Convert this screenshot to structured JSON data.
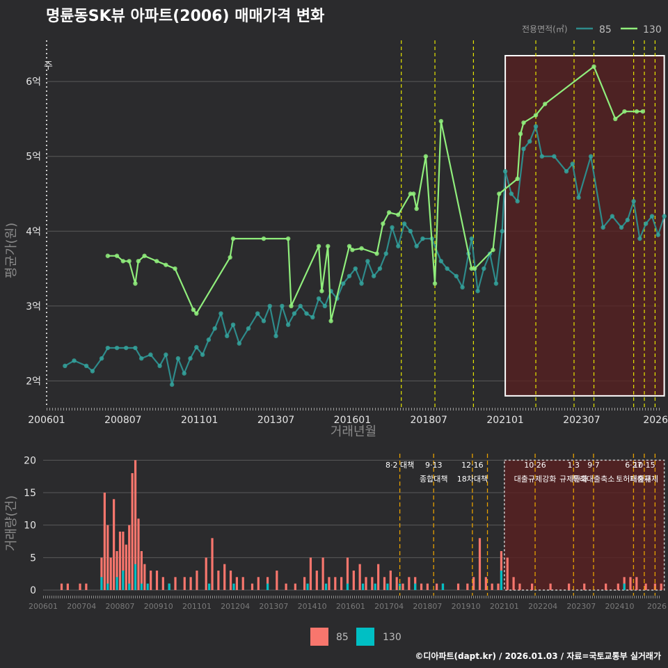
{
  "title": "명륜동SK뷰 아파트(2006) 매매가격 변화",
  "footer": "©디아파트(dapt.kr) / 2026.01.03 / 자료=국토교통부 실거래가",
  "colors": {
    "background": "#2b2b2d",
    "grid": "#5a5a5a",
    "s85_line": "#2e8b8b",
    "s85_point": "#34a39c",
    "s130": "#90ee7c",
    "bar85": "#f8766d",
    "bar130": "#00bfc4",
    "highlight_fill": "#5a2020",
    "policy_line_top": "#e6e600",
    "policy_line_bottom": "#e6a000"
  },
  "chart_data": [
    {
      "type": "line",
      "name": "price",
      "ylabel": "평균가(원)",
      "xlabel": "거래년월",
      "ylim": [
        1.65,
        6.55
      ],
      "yticks": [
        {
          "v": 2,
          "label": "2억"
        },
        {
          "v": 3,
          "label": "3억"
        },
        {
          "v": 4,
          "label": "4억"
        },
        {
          "v": 5,
          "label": "5억"
        },
        {
          "v": 6,
          "label": "6억"
        }
      ],
      "xticks": [
        "200601",
        "200807",
        "201101",
        "201307",
        "201601",
        "201807",
        "202101",
        "202307",
        "2026"
      ],
      "corner_label": "주",
      "legend_title": "전용면적(㎡)",
      "series": [
        {
          "name": "85",
          "points": [
            [
              2006.6,
              2.2
            ],
            [
              2006.9,
              2.27
            ],
            [
              2007.3,
              2.2
            ],
            [
              2007.5,
              2.13
            ],
            [
              2007.8,
              2.3
            ],
            [
              2008.0,
              2.44
            ],
            [
              2008.3,
              2.44
            ],
            [
              2008.6,
              2.44
            ],
            [
              2008.9,
              2.44
            ],
            [
              2009.1,
              2.3
            ],
            [
              2009.4,
              2.35
            ],
            [
              2009.7,
              2.2
            ],
            [
              2009.9,
              2.35
            ],
            [
              2010.1,
              1.95
            ],
            [
              2010.3,
              2.3
            ],
            [
              2010.5,
              2.1
            ],
            [
              2010.7,
              2.3
            ],
            [
              2010.9,
              2.45
            ],
            [
              2011.1,
              2.35
            ],
            [
              2011.3,
              2.55
            ],
            [
              2011.5,
              2.7
            ],
            [
              2011.7,
              2.9
            ],
            [
              2011.9,
              2.6
            ],
            [
              2012.1,
              2.75
            ],
            [
              2012.3,
              2.5
            ],
            [
              2012.6,
              2.7
            ],
            [
              2012.9,
              2.9
            ],
            [
              2013.1,
              2.8
            ],
            [
              2013.3,
              3.0
            ],
            [
              2013.5,
              2.6
            ],
            [
              2013.7,
              3.0
            ],
            [
              2013.9,
              2.75
            ],
            [
              2014.1,
              2.9
            ],
            [
              2014.3,
              3.0
            ],
            [
              2014.5,
              2.9
            ],
            [
              2014.7,
              2.85
            ],
            [
              2014.9,
              3.1
            ],
            [
              2015.1,
              3.0
            ],
            [
              2015.3,
              3.2
            ],
            [
              2015.5,
              3.1
            ],
            [
              2015.7,
              3.3
            ],
            [
              2015.9,
              3.4
            ],
            [
              2016.1,
              3.5
            ],
            [
              2016.3,
              3.3
            ],
            [
              2016.5,
              3.6
            ],
            [
              2016.7,
              3.4
            ],
            [
              2016.9,
              3.5
            ],
            [
              2017.1,
              3.7
            ],
            [
              2017.3,
              4.05
            ],
            [
              2017.5,
              3.8
            ],
            [
              2017.7,
              4.1
            ],
            [
              2017.9,
              4.0
            ],
            [
              2018.1,
              3.8
            ],
            [
              2018.3,
              3.9
            ],
            [
              2018.6,
              3.9
            ],
            [
              2018.9,
              3.6
            ],
            [
              2019.1,
              3.5
            ],
            [
              2019.4,
              3.4
            ],
            [
              2019.6,
              3.25
            ],
            [
              2019.8,
              3.7
            ],
            [
              2019.9,
              3.9
            ],
            [
              2020.1,
              3.2
            ],
            [
              2020.3,
              3.5
            ],
            [
              2020.5,
              3.7
            ],
            [
              2020.7,
              3.3
            ],
            [
              2020.9,
              4.0
            ],
            [
              2021.0,
              4.8
            ],
            [
              2021.2,
              4.5
            ],
            [
              2021.4,
              4.4
            ],
            [
              2021.6,
              5.1
            ],
            [
              2021.8,
              5.2
            ],
            [
              2022.0,
              5.4
            ],
            [
              2022.2,
              5.0
            ],
            [
              2022.6,
              5.0
            ],
            [
              2023.0,
              4.8
            ],
            [
              2023.2,
              4.9
            ],
            [
              2023.4,
              4.45
            ],
            [
              2023.8,
              5.0
            ],
            [
              2024.2,
              4.05
            ],
            [
              2024.5,
              4.2
            ],
            [
              2024.8,
              4.05
            ],
            [
              2025.0,
              4.15
            ],
            [
              2025.2,
              4.4
            ],
            [
              2025.4,
              3.9
            ],
            [
              2025.6,
              4.1
            ],
            [
              2025.8,
              4.2
            ],
            [
              2026.0,
              3.95
            ],
            [
              2026.2,
              4.2
            ]
          ]
        },
        {
          "name": "130",
          "points": [
            [
              2008.0,
              3.67
            ],
            [
              2008.3,
              3.67
            ],
            [
              2008.5,
              3.6
            ],
            [
              2008.7,
              3.6
            ],
            [
              2008.9,
              3.3
            ],
            [
              2009.0,
              3.6
            ],
            [
              2009.2,
              3.67
            ],
            [
              2009.6,
              3.6
            ],
            [
              2009.9,
              3.55
            ],
            [
              2010.2,
              3.5
            ],
            [
              2010.8,
              2.95
            ],
            [
              2010.9,
              2.9
            ],
            [
              2012.0,
              3.65
            ],
            [
              2012.1,
              3.9
            ],
            [
              2013.1,
              3.9
            ],
            [
              2013.9,
              3.9
            ],
            [
              2014.0,
              3.0
            ],
            [
              2014.9,
              3.8
            ],
            [
              2015.0,
              3.2
            ],
            [
              2015.2,
              3.8
            ],
            [
              2015.3,
              2.8
            ],
            [
              2015.9,
              3.8
            ],
            [
              2016.0,
              3.75
            ],
            [
              2016.3,
              3.77
            ],
            [
              2016.8,
              3.7
            ],
            [
              2017.0,
              4.1
            ],
            [
              2017.2,
              4.25
            ],
            [
              2017.5,
              4.22
            ],
            [
              2017.9,
              4.5
            ],
            [
              2018.0,
              4.5
            ],
            [
              2018.1,
              4.3
            ],
            [
              2018.4,
              5.0
            ],
            [
              2018.7,
              3.3
            ],
            [
              2018.9,
              5.47
            ],
            [
              2019.9,
              3.5
            ],
            [
              2020.0,
              3.5
            ],
            [
              2020.6,
              3.75
            ],
            [
              2020.8,
              4.5
            ],
            [
              2021.4,
              4.7
            ],
            [
              2021.5,
              5.3
            ],
            [
              2021.6,
              5.45
            ],
            [
              2022.0,
              5.55
            ],
            [
              2022.3,
              5.7
            ],
            [
              2023.9,
              6.2
            ],
            [
              2024.6,
              5.5
            ],
            [
              2024.9,
              5.6
            ],
            [
              2025.3,
              5.6
            ],
            [
              2025.5,
              5.6
            ]
          ]
        }
      ]
    },
    {
      "type": "bar",
      "name": "volume",
      "ylabel": "거래량(건)",
      "ylim": [
        0,
        21
      ],
      "yticks": [
        0,
        5,
        10,
        15,
        20
      ],
      "xticks": [
        "200601",
        "200704",
        "200807",
        "200910",
        "201101",
        "201204",
        "201307",
        "201410",
        "201601",
        "201704",
        "201807",
        "201910",
        "202101",
        "202204",
        "202307",
        "202410",
        "2026"
      ],
      "legend": [
        "85",
        "130"
      ],
      "series": [
        {
          "name": "85",
          "values": [
            [
              2006.6,
              1
            ],
            [
              2006.8,
              1
            ],
            [
              2007.2,
              1
            ],
            [
              2007.4,
              1
            ],
            [
              2007.9,
              5
            ],
            [
              2008.0,
              15
            ],
            [
              2008.1,
              10
            ],
            [
              2008.2,
              5
            ],
            [
              2008.3,
              14
            ],
            [
              2008.4,
              6
            ],
            [
              2008.5,
              9
            ],
            [
              2008.6,
              9
            ],
            [
              2008.7,
              7
            ],
            [
              2008.8,
              10
            ],
            [
              2008.9,
              18
            ],
            [
              2009.0,
              20
            ],
            [
              2009.1,
              11
            ],
            [
              2009.2,
              6
            ],
            [
              2009.3,
              4
            ],
            [
              2009.5,
              3
            ],
            [
              2009.7,
              3
            ],
            [
              2009.9,
              2
            ],
            [
              2010.1,
              1
            ],
            [
              2010.3,
              2
            ],
            [
              2010.6,
              2
            ],
            [
              2010.8,
              2
            ],
            [
              2011.0,
              3
            ],
            [
              2011.3,
              5
            ],
            [
              2011.5,
              8
            ],
            [
              2011.7,
              3
            ],
            [
              2011.9,
              4
            ],
            [
              2012.1,
              3
            ],
            [
              2012.3,
              2
            ],
            [
              2012.5,
              2
            ],
            [
              2012.8,
              1
            ],
            [
              2013.0,
              2
            ],
            [
              2013.3,
              2
            ],
            [
              2013.6,
              3
            ],
            [
              2013.9,
              1
            ],
            [
              2014.2,
              1
            ],
            [
              2014.5,
              2
            ],
            [
              2014.7,
              5
            ],
            [
              2014.9,
              3
            ],
            [
              2015.1,
              5
            ],
            [
              2015.3,
              2
            ],
            [
              2015.5,
              2
            ],
            [
              2015.7,
              2
            ],
            [
              2015.9,
              5
            ],
            [
              2016.1,
              3
            ],
            [
              2016.3,
              4
            ],
            [
              2016.5,
              2
            ],
            [
              2016.7,
              2
            ],
            [
              2016.9,
              4
            ],
            [
              2017.1,
              2
            ],
            [
              2017.3,
              3
            ],
            [
              2017.5,
              2
            ],
            [
              2017.7,
              1
            ],
            [
              2017.9,
              2
            ],
            [
              2018.1,
              2
            ],
            [
              2018.3,
              1
            ],
            [
              2018.5,
              1
            ],
            [
              2018.8,
              1
            ],
            [
              2019.0,
              1
            ],
            [
              2019.5,
              1
            ],
            [
              2019.8,
              1
            ],
            [
              2020.0,
              2
            ],
            [
              2020.2,
              8
            ],
            [
              2020.4,
              2
            ],
            [
              2020.6,
              1
            ],
            [
              2020.8,
              1
            ],
            [
              2020.9,
              6
            ],
            [
              2021.1,
              5
            ],
            [
              2021.3,
              2
            ],
            [
              2021.5,
              1
            ],
            [
              2021.9,
              1
            ],
            [
              2022.5,
              1
            ],
            [
              2023.1,
              1
            ],
            [
              2023.6,
              1
            ],
            [
              2024.3,
              1
            ],
            [
              2024.7,
              1
            ],
            [
              2024.9,
              2
            ],
            [
              2025.1,
              2
            ],
            [
              2025.3,
              2
            ],
            [
              2025.6,
              1
            ],
            [
              2025.9,
              1
            ],
            [
              2026.1,
              1
            ]
          ]
        },
        {
          "name": "130",
          "values": [
            [
              2007.9,
              2
            ],
            [
              2008.1,
              1
            ],
            [
              2008.4,
              2
            ],
            [
              2008.6,
              3
            ],
            [
              2008.8,
              1
            ],
            [
              2009.0,
              4
            ],
            [
              2009.2,
              1
            ],
            [
              2009.4,
              1
            ],
            [
              2010.1,
              1
            ],
            [
              2011.4,
              1
            ],
            [
              2012.2,
              1
            ],
            [
              2013.3,
              1
            ],
            [
              2014.6,
              1
            ],
            [
              2015.2,
              1
            ],
            [
              2015.9,
              1
            ],
            [
              2016.4,
              1
            ],
            [
              2016.8,
              1
            ],
            [
              2017.2,
              1
            ],
            [
              2017.6,
              1
            ],
            [
              2018.1,
              1
            ],
            [
              2019.0,
              1
            ],
            [
              2020.9,
              3
            ],
            [
              2024.9,
              1
            ]
          ]
        }
      ]
    }
  ],
  "highlight": {
    "x0": 2021.0,
    "x1": 2026.2
  },
  "policy_lines_top": [
    2017.6,
    2018.7,
    2019.96,
    2022.0,
    2023.25,
    2023.9,
    2025.2,
    2025.55,
    2025.9
  ],
  "policy_lines_bottom": [
    {
      "x": 2017.6,
      "label1": "8·2 대책",
      "label2": ""
    },
    {
      "x": 2018.7,
      "label1": "9·13",
      "label2": "종합대책"
    },
    {
      "x": 2019.96,
      "label1": "12·16",
      "label2": "18차대책"
    },
    {
      "x": 2020.45,
      "label1": "",
      "label2": ""
    },
    {
      "x": 2022.0,
      "label1": "10·26",
      "label2": "대출규제강화"
    },
    {
      "x": 2023.25,
      "label1": "1·3",
      "label2": "규제완화"
    },
    {
      "x": 2023.9,
      "label1": "9·7",
      "label2": "특례대출축소"
    },
    {
      "x": 2025.2,
      "label1": "6·27",
      "label2": "토허제해제"
    },
    {
      "x": 2025.55,
      "label1": "10·15",
      "label2": "대출규제"
    },
    {
      "x": 2025.9,
      "label1": "",
      "label2": ""
    }
  ]
}
